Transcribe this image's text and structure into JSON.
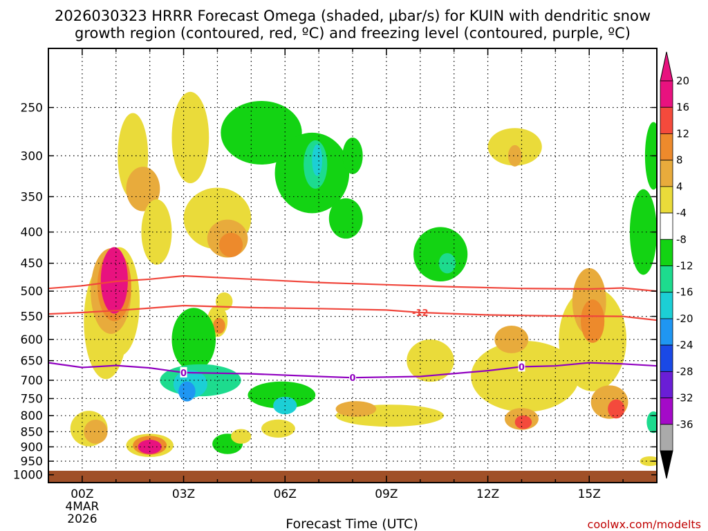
{
  "chart_data": {
    "type": "heatmap",
    "title_line1": "2026030323 HRRR Forecast Omega (shaded, μbar/s) for KUIN with dendritic snow",
    "title_line2": "growth region (contoured, red, ºC) and freezing level (contoured, purple, ºC)",
    "xlabel": "Forecast Time (UTC)",
    "ylabel": "",
    "credit": "coolwx.com/modelts",
    "x_ticks": [
      {
        "hour": 0,
        "label": "00Z",
        "sub1": "4MAR",
        "sub2": "2026"
      },
      {
        "hour": 3,
        "label": "03Z"
      },
      {
        "hour": 6,
        "label": "06Z"
      },
      {
        "hour": 9,
        "label": "09Z"
      },
      {
        "hour": 12,
        "label": "12Z"
      },
      {
        "hour": 15,
        "label": "15Z"
      }
    ],
    "xlim": [
      -1,
      17
    ],
    "y_ticks": [
      250,
      300,
      350,
      400,
      450,
      500,
      550,
      600,
      650,
      700,
      750,
      800,
      850,
      900,
      950,
      1000
    ],
    "ylim": [
      1030,
      200
    ],
    "colorbar": {
      "levels": [
        20,
        16,
        12,
        8,
        4,
        -4,
        -8,
        -12,
        -16,
        -20,
        -24,
        -28,
        -32,
        -36
      ],
      "bands": [
        {
          "lo": 20,
          "hi": 24,
          "color": "#e8127f"
        },
        {
          "lo": 16,
          "hi": 20,
          "color": "#f44a3c"
        },
        {
          "lo": 12,
          "hi": 16,
          "color": "#ed8a2c"
        },
        {
          "lo": 8,
          "hi": 12,
          "color": "#e8ab3c"
        },
        {
          "lo": 4,
          "hi": 8,
          "color": "#eadb3a"
        },
        {
          "lo": -4,
          "hi": 4,
          "color": "#ffffff"
        },
        {
          "lo": -8,
          "hi": -4,
          "color": "#13d313"
        },
        {
          "lo": -12,
          "hi": -8,
          "color": "#1ddb8e"
        },
        {
          "lo": -16,
          "hi": -12,
          "color": "#1ccfd5"
        },
        {
          "lo": -20,
          "hi": -16,
          "color": "#1f96f2"
        },
        {
          "lo": -24,
          "hi": -20,
          "color": "#1a49e6"
        },
        {
          "lo": -28,
          "hi": -24,
          "color": "#6a1ed6"
        },
        {
          "lo": -32,
          "hi": -28,
          "color": "#a40ac8"
        },
        {
          "lo": -36,
          "hi": -32,
          "color": "#aaaaaa"
        }
      ],
      "top_arrow_color": "#e8127f",
      "bottom_arrow_color": "#000000"
    },
    "omega_cells": [
      {
        "t": 0.7,
        "p": 560,
        "dt": 0.65,
        "dp": 230,
        "v": 6
      },
      {
        "t": 1.1,
        "p": 520,
        "dt": 0.6,
        "dp": 200,
        "v": 6
      },
      {
        "t": 0.85,
        "p": 500,
        "dt": 0.6,
        "dp": 150,
        "v": 8
      },
      {
        "t": 0.95,
        "p": 490,
        "dt": 0.5,
        "dp": 120,
        "v": 12
      },
      {
        "t": 0.95,
        "p": 480,
        "dt": 0.4,
        "dp": 110,
        "v": 22
      },
      {
        "t": 1.5,
        "p": 300,
        "dt": 0.45,
        "dp": 90,
        "v": 5
      },
      {
        "t": 1.8,
        "p": 340,
        "dt": 0.5,
        "dp": 50,
        "v": 9
      },
      {
        "t": 2.2,
        "p": 400,
        "dt": 0.45,
        "dp": 90,
        "v": 5
      },
      {
        "t": 0.2,
        "p": 840,
        "dt": 0.55,
        "dp": 95,
        "v": 6
      },
      {
        "t": 0.4,
        "p": 850,
        "dt": 0.35,
        "dp": 60,
        "v": 9
      },
      {
        "t": 2.0,
        "p": 895,
        "dt": 0.7,
        "dp": 60,
        "v": 7
      },
      {
        "t": 2.0,
        "p": 895,
        "dt": 0.5,
        "dp": 45,
        "v": 12
      },
      {
        "t": 2.0,
        "p": 900,
        "dt": 0.35,
        "dp": 30,
        "v": 22
      },
      {
        "t": 3.2,
        "p": 280,
        "dt": 0.55,
        "dp": 90,
        "v": 5
      },
      {
        "t": 4.0,
        "p": 380,
        "dt": 1.0,
        "dp": 80,
        "v": 6
      },
      {
        "t": 4.3,
        "p": 410,
        "dt": 0.6,
        "dp": 50,
        "v": 10
      },
      {
        "t": 4.4,
        "p": 420,
        "dt": 0.35,
        "dp": 30,
        "v": 14
      },
      {
        "t": 4.0,
        "p": 560,
        "dt": 0.3,
        "dp": 55,
        "v": 6
      },
      {
        "t": 4.05,
        "p": 570,
        "dt": 0.18,
        "dp": 22,
        "v": 14
      },
      {
        "t": 3.3,
        "p": 600,
        "dt": 0.65,
        "dp": 130,
        "v": -6
      },
      {
        "t": 3.5,
        "p": 700,
        "dt": 1.2,
        "dp": 70,
        "v": -9
      },
      {
        "t": 3.2,
        "p": 710,
        "dt": 0.5,
        "dp": 60,
        "v": -15
      },
      {
        "t": 3.1,
        "p": 730,
        "dt": 0.25,
        "dp": 40,
        "v": -17
      },
      {
        "t": 4.2,
        "p": 520,
        "dt": 0.25,
        "dp": 25,
        "v": 5
      },
      {
        "t": 5.9,
        "p": 740,
        "dt": 1.0,
        "dp": 60,
        "v": -7
      },
      {
        "t": 6.0,
        "p": 770,
        "dt": 0.35,
        "dp": 35,
        "v": -14
      },
      {
        "t": 4.3,
        "p": 890,
        "dt": 0.45,
        "dp": 50,
        "v": -7
      },
      {
        "t": 4.7,
        "p": 865,
        "dt": 0.3,
        "dp": 30,
        "v": 6
      },
      {
        "t": 5.8,
        "p": 840,
        "dt": 0.5,
        "dp": 40,
        "v": 6
      },
      {
        "t": 5.3,
        "p": 275,
        "dt": 1.2,
        "dp": 60,
        "v": -6
      },
      {
        "t": 6.8,
        "p": 320,
        "dt": 1.1,
        "dp": 90,
        "v": -7
      },
      {
        "t": 6.9,
        "p": 310,
        "dt": 0.35,
        "dp": 50,
        "v": -11
      },
      {
        "t": 6.95,
        "p": 305,
        "dt": 0.15,
        "dp": 30,
        "v": -14
      },
      {
        "t": 7.8,
        "p": 380,
        "dt": 0.5,
        "dp": 50,
        "v": -6
      },
      {
        "t": 8.0,
        "p": 300,
        "dt": 0.3,
        "dp": 35,
        "v": -6
      },
      {
        "t": 10.6,
        "p": 435,
        "dt": 0.8,
        "dp": 80,
        "v": -6
      },
      {
        "t": 10.8,
        "p": 450,
        "dt": 0.25,
        "dp": 25,
        "v": -10
      },
      {
        "t": 9.1,
        "p": 800,
        "dt": 1.6,
        "dp": 50,
        "v": 5
      },
      {
        "t": 8.1,
        "p": 780,
        "dt": 0.6,
        "dp": 30,
        "v": 8
      },
      {
        "t": 12.8,
        "p": 290,
        "dt": 0.8,
        "dp": 35,
        "v": 5
      },
      {
        "t": 12.8,
        "p": 300,
        "dt": 0.2,
        "dp": 18,
        "v": 10
      },
      {
        "t": 13.1,
        "p": 690,
        "dt": 1.6,
        "dp": 170,
        "v": 5
      },
      {
        "t": 12.7,
        "p": 600,
        "dt": 0.5,
        "dp": 50,
        "v": 9
      },
      {
        "t": 13.0,
        "p": 810,
        "dt": 0.5,
        "dp": 50,
        "v": 10
      },
      {
        "t": 13.05,
        "p": 820,
        "dt": 0.25,
        "dp": 25,
        "v": 17
      },
      {
        "t": 15.1,
        "p": 600,
        "dt": 1.0,
        "dp": 220,
        "v": 6
      },
      {
        "t": 15.0,
        "p": 520,
        "dt": 0.5,
        "dp": 120,
        "v": 10
      },
      {
        "t": 15.1,
        "p": 560,
        "dt": 0.35,
        "dp": 80,
        "v": 13
      },
      {
        "t": 15.6,
        "p": 760,
        "dt": 0.55,
        "dp": 80,
        "v": 10
      },
      {
        "t": 15.8,
        "p": 780,
        "dt": 0.25,
        "dp": 40,
        "v": 18
      },
      {
        "t": 16.6,
        "p": 400,
        "dt": 0.4,
        "dp": 120,
        "v": -6
      },
      {
        "t": 16.9,
        "p": 300,
        "dt": 0.25,
        "dp": 70,
        "v": -6
      },
      {
        "t": 16.9,
        "p": 820,
        "dt": 0.2,
        "dp": 50,
        "v": -10
      },
      {
        "t": 16.8,
        "p": 950,
        "dt": 0.3,
        "dp": 15,
        "v": 5
      },
      {
        "t": 10.3,
        "p": 650,
        "dt": 0.7,
        "dp": 90,
        "v": 5
      }
    ],
    "dgz_contours": [
      {
        "label": "",
        "points": [
          [
            -1,
            495
          ],
          [
            0,
            490
          ],
          [
            1,
            482
          ],
          [
            2,
            478
          ],
          [
            3,
            472
          ],
          [
            5,
            478
          ],
          [
            7,
            484
          ],
          [
            9,
            488
          ],
          [
            11,
            492
          ],
          [
            13,
            495
          ],
          [
            15,
            496
          ],
          [
            16,
            494
          ],
          [
            17,
            500
          ]
        ]
      },
      {
        "label": "-12",
        "label_at": 10,
        "points": [
          [
            -1,
            545
          ],
          [
            0,
            542
          ],
          [
            1,
            538
          ],
          [
            2,
            533
          ],
          [
            3,
            528
          ],
          [
            5,
            532
          ],
          [
            7,
            534
          ],
          [
            9,
            537
          ],
          [
            10,
            542
          ],
          [
            12,
            547
          ],
          [
            14,
            549
          ],
          [
            16,
            550
          ],
          [
            17,
            558
          ]
        ]
      }
    ],
    "freezing_contour": {
      "label": "0",
      "label_at": [
        3,
        8,
        13
      ],
      "points": [
        [
          -1,
          655
        ],
        [
          0,
          667
        ],
        [
          1,
          662
        ],
        [
          2,
          668
        ],
        [
          3,
          680
        ],
        [
          5,
          683
        ],
        [
          7,
          690
        ],
        [
          8,
          693
        ],
        [
          10,
          690
        ],
        [
          12,
          675
        ],
        [
          13,
          665
        ],
        [
          14,
          663
        ],
        [
          15,
          655
        ],
        [
          16,
          658
        ],
        [
          17,
          663
        ]
      ]
    },
    "contour_colors": {
      "dgz": "#f0463c",
      "freezing": "#9000c0",
      "ground": "#a05028"
    },
    "ground_level_mb": 985
  }
}
